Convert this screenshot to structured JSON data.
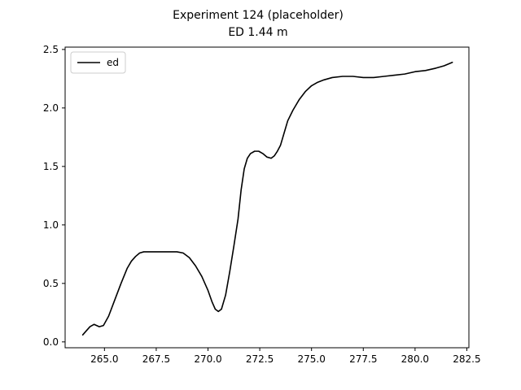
{
  "chart_data": {
    "type": "line",
    "title": "Experiment 124 (placeholder)",
    "subtitle": "ED 1.44 m",
    "xlabel": "",
    "ylabel": "",
    "xlim": [
      263.1,
      282.6
    ],
    "ylim": [
      -0.05,
      2.52
    ],
    "xticks": [
      265.0,
      267.5,
      270.0,
      272.5,
      275.0,
      277.5,
      280.0,
      282.5
    ],
    "xtick_labels": [
      "265.0",
      "267.5",
      "270.0",
      "272.5",
      "275.0",
      "277.5",
      "280.0",
      "282.5"
    ],
    "yticks": [
      0.0,
      0.5,
      1.0,
      1.5,
      2.0,
      2.5
    ],
    "ytick_labels": [
      "0.0",
      "0.5",
      "1.0",
      "1.5",
      "2.0",
      "2.5"
    ],
    "grid": false,
    "legend_position": "top-left",
    "series": [
      {
        "name": "ed",
        "color": "#000000",
        "x": [
          263.95,
          264.1,
          264.3,
          264.5,
          264.75,
          264.95,
          265.2,
          265.5,
          265.8,
          266.1,
          266.3,
          266.5,
          266.7,
          266.9,
          267.1,
          267.5,
          268.0,
          268.5,
          268.8,
          269.1,
          269.4,
          269.7,
          270.0,
          270.2,
          270.35,
          270.5,
          270.65,
          270.85,
          271.05,
          271.25,
          271.45,
          271.6,
          271.75,
          271.9,
          272.05,
          272.25,
          272.45,
          272.65,
          272.85,
          273.05,
          273.2,
          273.35,
          273.5,
          273.7,
          273.85,
          274.1,
          274.4,
          274.7,
          275.0,
          275.3,
          275.6,
          276.0,
          276.5,
          277.0,
          277.5,
          278.0,
          278.5,
          279.0,
          279.5,
          280.0,
          280.5,
          281.0,
          281.4,
          281.8
        ],
        "y": [
          0.06,
          0.09,
          0.13,
          0.15,
          0.13,
          0.14,
          0.22,
          0.36,
          0.5,
          0.63,
          0.69,
          0.73,
          0.76,
          0.77,
          0.77,
          0.77,
          0.77,
          0.77,
          0.76,
          0.72,
          0.65,
          0.56,
          0.44,
          0.34,
          0.28,
          0.26,
          0.28,
          0.4,
          0.6,
          0.82,
          1.05,
          1.3,
          1.48,
          1.57,
          1.61,
          1.63,
          1.63,
          1.61,
          1.58,
          1.57,
          1.59,
          1.63,
          1.68,
          1.8,
          1.89,
          1.98,
          2.07,
          2.14,
          2.19,
          2.22,
          2.24,
          2.26,
          2.27,
          2.27,
          2.26,
          2.26,
          2.27,
          2.28,
          2.29,
          2.31,
          2.32,
          2.34,
          2.36,
          2.39
        ]
      }
    ]
  }
}
